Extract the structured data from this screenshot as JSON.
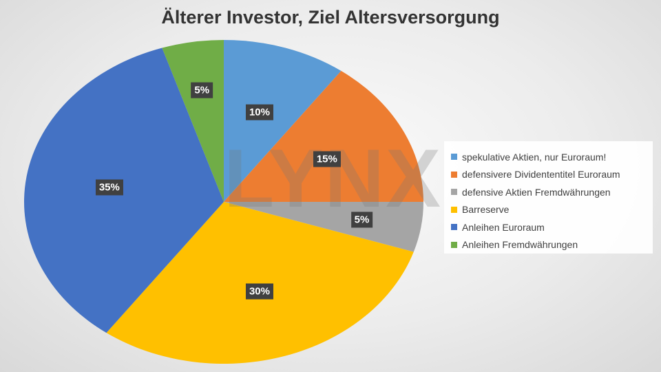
{
  "chart_data": {
    "type": "pie",
    "title": "Älterer Investor, Ziel Altersversorgung",
    "categories": [
      "spekulative Aktien, nur Euroraum!",
      "defensivere Dividententitel Euroraum",
      "defensive Aktien Fremdwährungen",
      "Barreserve",
      "Anleihen Euroraum",
      "Anleihen Fremdwährungen"
    ],
    "values": [
      10,
      15,
      5,
      30,
      35,
      5
    ],
    "labels": [
      "10%",
      "15%",
      "5%",
      "30%",
      "35%",
      "5%"
    ],
    "colors": [
      "#5B9BD5",
      "#ED7D31",
      "#A5A5A5",
      "#FFC000",
      "#4472C4",
      "#70AD47"
    ],
    "legend_position": "right",
    "start_angle": "top, clockwise"
  },
  "watermark": "LYNX"
}
